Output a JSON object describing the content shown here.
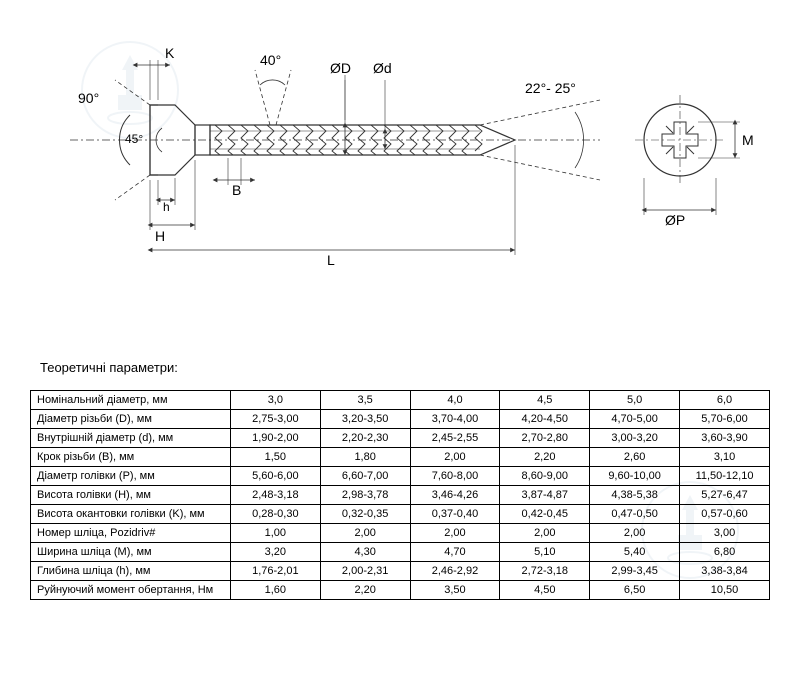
{
  "title": "Теоретичні параметри:",
  "diagram": {
    "labels": {
      "angle90": "90°",
      "angle45": "45°",
      "angle40": "40°",
      "angle22_25": "22°- 25°",
      "K": "K",
      "h": "h",
      "H": "H",
      "B": "B",
      "L": "L",
      "D": "ØD",
      "d": "Ød",
      "P": "ØP",
      "M": "M"
    },
    "stroke_color": "#333333",
    "stroke_width": 1,
    "dash_pattern": "4,3"
  },
  "table": {
    "columns": [
      "3,0",
      "3,5",
      "4,0",
      "4,5",
      "5,0",
      "6,0"
    ],
    "rows": [
      {
        "label": "Номінальний діаметр, мм",
        "values": [
          "3,0",
          "3,5",
          "4,0",
          "4,5",
          "5,0",
          "6,0"
        ]
      },
      {
        "label": "Діаметр різьби (D), мм",
        "values": [
          "2,75-3,00",
          "3,20-3,50",
          "3,70-4,00",
          "4,20-4,50",
          "4,70-5,00",
          "5,70-6,00"
        ]
      },
      {
        "label": "Внутрішній діаметр (d), мм",
        "values": [
          "1,90-2,00",
          "2,20-2,30",
          "2,45-2,55",
          "2,70-2,80",
          "3,00-3,20",
          "3,60-3,90"
        ]
      },
      {
        "label": "Крок різьби (В), мм",
        "values": [
          "1,50",
          "1,80",
          "2,00",
          "2,20",
          "2,60",
          "3,10"
        ]
      },
      {
        "label": "Діаметр голівки (P), мм",
        "values": [
          "5,60-6,00",
          "6,60-7,00",
          "7,60-8,00",
          "8,60-9,00",
          "9,60-10,00",
          "11,50-12,10"
        ]
      },
      {
        "label": "Висота голівки (H), мм",
        "values": [
          "2,48-3,18",
          "2,98-3,78",
          "3,46-4,26",
          "3,87-4,87",
          "4,38-5,38",
          "5,27-6,47"
        ]
      },
      {
        "label": "Висота окантовки голівки (K), мм",
        "values": [
          "0,28-0,30",
          "0,32-0,35",
          "0,37-0,40",
          "0,42-0,45",
          "0,47-0,50",
          "0,57-0,60"
        ]
      },
      {
        "label": "Номер шліца, Pozidriv#",
        "values": [
          "1,00",
          "2,00",
          "2,00",
          "2,00",
          "2,00",
          "3,00"
        ]
      },
      {
        "label": "Ширина шліца (M), мм",
        "values": [
          "3,20",
          "4,30",
          "4,70",
          "5,10",
          "5,40",
          "6,80"
        ]
      },
      {
        "label": "Глибина шліца (h), мм",
        "values": [
          "1,76-2,01",
          "2,00-2,31",
          "2,46-2,92",
          "2,72-3,18",
          "2,99-3,45",
          "3,38-3,84"
        ]
      },
      {
        "label": "Руйнуючий момент обертання, Нм",
        "values": [
          "1,60",
          "2,20",
          "3,50",
          "4,50",
          "6,50",
          "10,50"
        ]
      }
    ]
  },
  "watermark_color": "#4a7aa8"
}
